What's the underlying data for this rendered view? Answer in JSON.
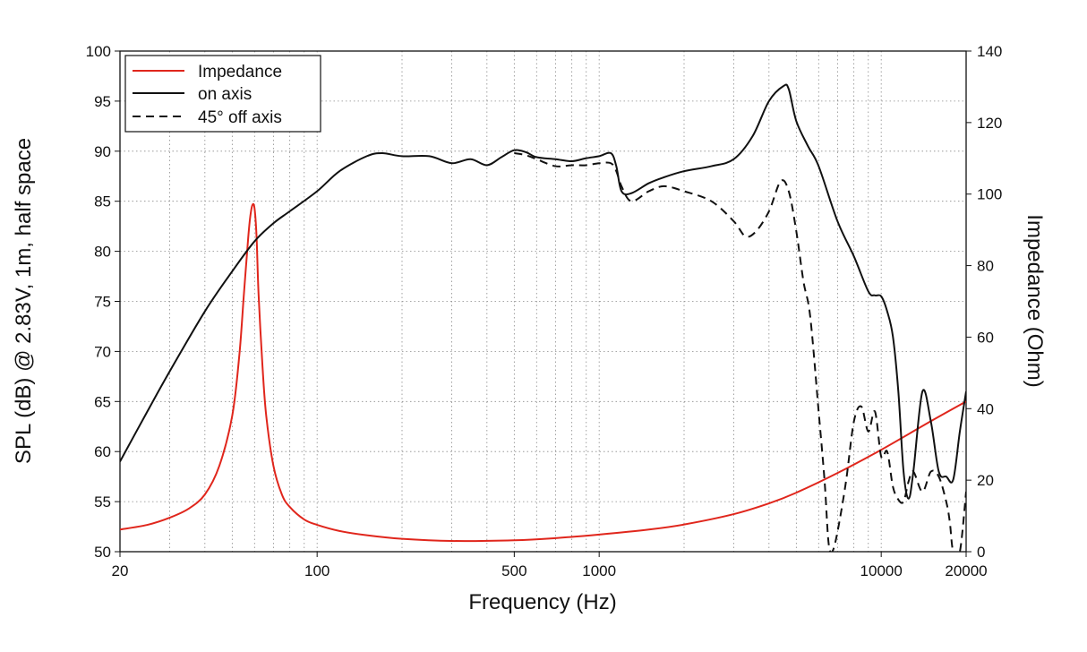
{
  "chart_data": {
    "type": "line",
    "xlabel": "Frequency (Hz)",
    "ylabel": "SPL (dB) @ 2.83V, 1m, half space",
    "y2label": "Impedance (Ohm)",
    "xscale": "log",
    "xlim": [
      20,
      20000
    ],
    "ylim": [
      50,
      100
    ],
    "y2lim": [
      0,
      140
    ],
    "grid": true,
    "legend_position": "top-left",
    "x_tick_labels": [
      "20",
      "100",
      "500",
      "1000",
      "10000",
      "20000"
    ],
    "x_tick_values": [
      20,
      100,
      500,
      1000,
      10000,
      20000
    ],
    "y_tick_labels": [
      "50",
      "55",
      "60",
      "65",
      "70",
      "75",
      "80",
      "85",
      "90",
      "95",
      "100"
    ],
    "y_tick_values": [
      50,
      55,
      60,
      65,
      70,
      75,
      80,
      85,
      90,
      95,
      100
    ],
    "y2_tick_labels": [
      "0",
      "20",
      "40",
      "60",
      "80",
      "100",
      "120",
      "140"
    ],
    "y2_tick_values": [
      0,
      20,
      40,
      60,
      80,
      100,
      120,
      140
    ],
    "series": [
      {
        "name": "Impedance",
        "axis": "right",
        "color": "#e0261c",
        "style": "solid",
        "x": [
          20,
          25,
          30,
          35,
          40,
          45,
          50,
          53,
          55,
          57,
          58,
          59,
          60,
          61,
          62,
          64,
          66,
          70,
          75,
          80,
          90,
          100,
          120,
          150,
          200,
          300,
          500,
          700,
          1000,
          1500,
          2000,
          3000,
          4000,
          5000,
          7000,
          10000,
          15000,
          20000
        ],
        "values": [
          6.2,
          7.5,
          9.5,
          12,
          16,
          24,
          38,
          55,
          72,
          88,
          94,
          97,
          96,
          88,
          72,
          52,
          38,
          24,
          16,
          12.5,
          9,
          7.5,
          5.8,
          4.6,
          3.6,
          3.0,
          3.2,
          3.8,
          4.8,
          6.2,
          7.6,
          10.5,
          13.5,
          16.5,
          22,
          28.5,
          36.5,
          42
        ]
      },
      {
        "name": "on axis",
        "axis": "left",
        "color": "#111111",
        "style": "solid",
        "x": [
          20,
          25,
          30,
          40,
          50,
          60,
          70,
          80,
          100,
          120,
          150,
          170,
          200,
          250,
          300,
          350,
          400,
          450,
          500,
          550,
          600,
          700,
          800,
          900,
          1000,
          1100,
          1150,
          1200,
          1300,
          1500,
          1700,
          2000,
          2500,
          3000,
          3500,
          4000,
          4500,
          4700,
          5000,
          5500,
          6000,
          7000,
          8000,
          9000,
          9500,
          10000,
          10500,
          11000,
          11500,
          12000,
          12500,
          13000,
          14000,
          15000,
          16000,
          17000,
          18000,
          19000,
          20000
        ],
        "values": [
          59,
          64,
          68,
          74,
          78,
          81,
          82.8,
          84,
          86,
          88,
          89.5,
          89.8,
          89.5,
          89.5,
          88.8,
          89.2,
          88.6,
          89.4,
          90.1,
          89.9,
          89.4,
          89.2,
          89.0,
          89.3,
          89.5,
          89.8,
          88.5,
          86,
          85.8,
          86.8,
          87.4,
          88,
          88.5,
          89.2,
          91.5,
          95,
          96.5,
          96.2,
          93,
          90.5,
          88.5,
          83,
          79.5,
          76,
          75.6,
          75.5,
          74,
          71.5,
          66,
          58,
          55.3,
          58,
          66,
          63,
          58,
          57.5,
          57.2,
          62,
          66
        ]
      },
      {
        "name": "45° off axis",
        "axis": "left",
        "color": "#111111",
        "style": "dashed",
        "x": [
          500,
          550,
          600,
          700,
          800,
          900,
          1000,
          1100,
          1150,
          1200,
          1300,
          1500,
          1700,
          2000,
          2500,
          3000,
          3300,
          3600,
          4000,
          4400,
          4700,
          5000,
          5300,
          5600,
          6000,
          6300,
          6500,
          6700,
          7000,
          7500,
          8000,
          8500,
          9000,
          9500,
          10000,
          10500,
          11000,
          11500,
          12000,
          12500,
          13000,
          14000,
          15000,
          16000,
          17000,
          17500,
          18000,
          19000,
          20000
        ],
        "values": [
          89.8,
          89.6,
          89.2,
          88.5,
          88.6,
          88.6,
          88.8,
          88.8,
          88,
          86.5,
          85,
          86,
          86.5,
          86,
          85,
          83,
          81.5,
          82,
          84,
          87,
          86,
          82,
          77,
          73.5,
          64,
          57,
          51,
          50,
          52,
          57,
          63,
          64.5,
          62,
          64,
          59.5,
          60,
          56.5,
          55.2,
          55,
          57,
          58,
          56,
          58,
          57.5,
          55,
          53,
          50,
          50,
          56
        ]
      }
    ]
  }
}
